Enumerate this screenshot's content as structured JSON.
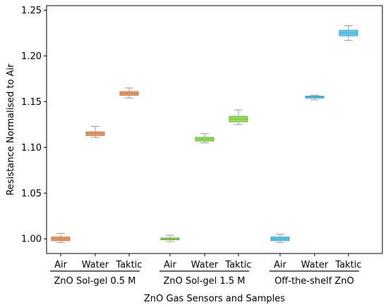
{
  "chart_data": {
    "type": "box",
    "ylabel": "Resistance Normalised to Air",
    "xlabel": "ZnO Gas Sensors and Samples",
    "ylim": [
      0.984,
      1.255
    ],
    "yticks": [
      "1.00",
      "1.05",
      "1.10",
      "1.15",
      "1.20",
      "1.25"
    ],
    "categories": [
      "Air",
      "Water",
      "Taktic",
      "Air",
      "Water",
      "Taktic",
      "Air",
      "Water",
      "Taktic"
    ],
    "groups": [
      {
        "name": "ZnO Sol-gel 0.5 M",
        "color": "#ef9a6a",
        "edge": "#c8784a",
        "boxes": [
          {
            "label": "Air",
            "whislo": 0.996,
            "q1": 0.998,
            "med": 1.0,
            "q3": 1.002,
            "whishi": 1.006
          },
          {
            "label": "Water",
            "whislo": 1.111,
            "q1": 1.113,
            "med": 1.115,
            "q3": 1.117,
            "whishi": 1.123
          },
          {
            "label": "Taktic",
            "whislo": 1.154,
            "q1": 1.157,
            "med": 1.159,
            "q3": 1.161,
            "whishi": 1.165
          }
        ]
      },
      {
        "name": "ZnO Sol-gel 1.5 M",
        "color": "#96e35a",
        "edge": "#6db43c",
        "boxes": [
          {
            "label": "Air",
            "whislo": 0.997,
            "q1": 0.999,
            "med": 1.0,
            "q3": 1.001,
            "whishi": 1.004
          },
          {
            "label": "Water",
            "whislo": 1.105,
            "q1": 1.107,
            "med": 1.109,
            "q3": 1.111,
            "whishi": 1.115
          },
          {
            "label": "Taktic",
            "whislo": 1.125,
            "q1": 1.128,
            "med": 1.131,
            "q3": 1.134,
            "whishi": 1.141
          }
        ]
      },
      {
        "name": "Off-the-shelf ZnO",
        "color": "#64cbef",
        "edge": "#3aa0c8",
        "boxes": [
          {
            "label": "Air",
            "whislo": 0.996,
            "q1": 0.998,
            "med": 1.0,
            "q3": 1.002,
            "whishi": 1.005
          },
          {
            "label": "Water",
            "whislo": 1.152,
            "q1": 1.154,
            "med": 1.155,
            "q3": 1.156,
            "whishi": 1.157
          },
          {
            "label": "Taktic",
            "whislo": 1.217,
            "q1": 1.222,
            "med": 1.225,
            "q3": 1.228,
            "whishi": 1.233
          }
        ]
      }
    ],
    "grid": false,
    "legend": "none"
  }
}
